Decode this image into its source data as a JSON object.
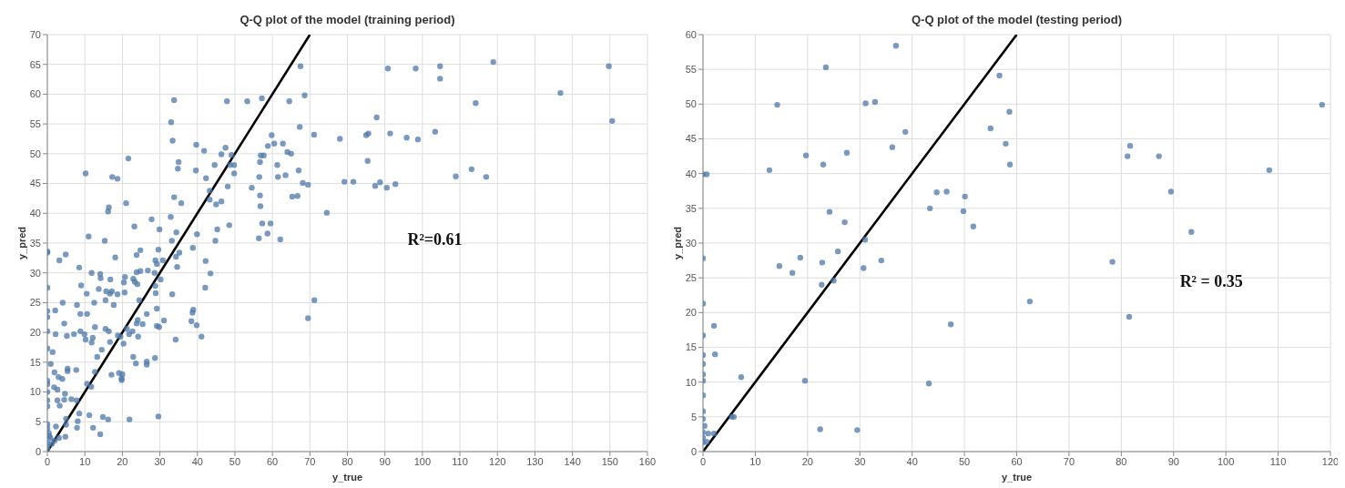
{
  "chart_data": [
    {
      "type": "scatter",
      "title": "Q-Q plot of the model (training period)",
      "xlabel": "y_true",
      "ylabel": "y_pred",
      "annotations": [
        "R²=0.61"
      ],
      "xlim": [
        0,
        160
      ],
      "xticks": [
        0,
        10,
        20,
        30,
        40,
        50,
        60,
        70,
        80,
        90,
        100,
        110,
        120,
        130,
        140,
        150,
        160
      ],
      "ylim": [
        0,
        70
      ],
      "yticks": [
        0,
        5,
        10,
        15,
        20,
        25,
        30,
        35,
        40,
        45,
        50,
        55,
        60,
        65,
        70
      ],
      "grid": true,
      "marker": "circle",
      "series": [
        {
          "color": "#4c78a8",
          "x": [
            33.8,
            47.9,
            53.3,
            57.2,
            64.5,
            68.6,
            67.5,
            33.0,
            33.4,
            67.3,
            71.1,
            59.8,
            39.7,
            41.8,
            47.5,
            46.4,
            49.1,
            58.8,
            60.5,
            62.8,
            64.0,
            65.0,
            56.9,
            57.7,
            56.7,
            61.3,
            48.8,
            49.8,
            49.8,
            44.6,
            35.0,
            34.8,
            39.6,
            42.3,
            56.5,
            61.5,
            63.5,
            67.0,
            68.1,
            69.5,
            48.1,
            54.5,
            43.3,
            43.3,
            45.0,
            46.4,
            56.7,
            56.8,
            65.3,
            66.7,
            74.5,
            33.8,
            35.7,
            10.2,
            17.3,
            18.7,
            21.0,
            16.4,
            16.2,
            21.6,
            27.8,
            32.9,
            23.2,
            29.9,
            45.3,
            39.9,
            48.5,
            57.3,
            59.5,
            58.7,
            56.4,
            62.1,
            44.8,
            34.4,
            33.2,
            11.0,
            15.3,
            38.8,
            24.8,
            23.8,
            29.6,
            35.2,
            34.3,
            34.6,
            0,
            0,
            4.9,
            3.2,
            18.1,
            8.5,
            28.8,
            29.2,
            30.8,
            42.2,
            43.5,
            11.8,
            14.1,
            14.2,
            16.8,
            20.7,
            20.4,
            23.8,
            24.8,
            26.8,
            28.6,
            30.2,
            22.9,
            23.3,
            24.0,
            9.0,
            28.8,
            0,
            13.7,
            15.7,
            17.2,
            16.7,
            18.7,
            20.6,
            10.5,
            28.9,
            33.3,
            42.1,
            24.5,
            15.5,
            4.1,
            12.5,
            7.9,
            17.7,
            71.2,
            69.5,
            0,
            0,
            2.1,
            8.8,
            10.6,
            26.5,
            29.2,
            38.9,
            38.7,
            24.1,
            31.1,
            38.4,
            4.5,
            12.7,
            15.5,
            16.4,
            21.2,
            22.7,
            23.8,
            25.4,
            29.2,
            29.8,
            39.8,
            0,
            2.2,
            5.2,
            7.1,
            8.8,
            9.9,
            10.2,
            11.8,
            12.1,
            16.7,
            18.8,
            19.5,
            20.3,
            21.8,
            24.2,
            34.2,
            41.1,
            0,
            1.4,
            14.5,
            13.3,
            22.9,
            23.6,
            26.5,
            26.5,
            28.7,
            0.9,
            1.9,
            3.0,
            4.0,
            5.4,
            5.4,
            7.7,
            12.7,
            17.1,
            19.1,
            20.0,
            19.8,
            19.8,
            0,
            0,
            0,
            1.8,
            2.7,
            10.6,
            11.7,
            4.7,
            0,
            0,
            2.7,
            3.3,
            4.5,
            6.4,
            7.8,
            8.5,
            8.1,
            7.9,
            11.2,
            12.2,
            14.1,
            14.8,
            16.2,
            21.9,
            29.6,
            4.8,
            5.0,
            5.0,
            2.3,
            3.1,
            0,
            0,
            0.4,
            0.8,
            0,
            1.2,
            0,
            1.9,
            0,
            0.5,
            78,
            79.2,
            90.8,
            98.2,
            104.7,
            104.7,
            118.9,
            149.7,
            136.8,
            114.2,
            87.8,
            85.0,
            85.6,
            91.4,
            95.8,
            98.8,
            103.4,
            150.6,
            85.4,
            81.6,
            87.4,
            88.7,
            90.5,
            92.8,
            108.9,
            113.1,
            117.0
          ],
          "values": [
            59.0,
            58.8,
            58.8,
            59.3,
            58.8,
            59.8,
            64.7,
            55.3,
            52.2,
            54.5,
            53.2,
            53.1,
            51.5,
            50.5,
            51.0,
            49.9,
            49.8,
            51.3,
            51.7,
            51.7,
            50.3,
            50.0,
            49.7,
            49.7,
            48.6,
            48.1,
            48.1,
            48.1,
            46.7,
            48.1,
            48.6,
            47.5,
            47.2,
            45.9,
            46.1,
            46.1,
            46.4,
            47.2,
            45.1,
            44.8,
            44.5,
            44.3,
            43.8,
            42.3,
            41.5,
            42.0,
            43.0,
            41.2,
            42.8,
            42.9,
            40.1,
            42.7,
            41.7,
            46.7,
            46.1,
            45.8,
            41.7,
            41.0,
            40.3,
            49.2,
            39.0,
            39.4,
            37.8,
            37.3,
            37.3,
            36.5,
            38.0,
            38.3,
            38.3,
            36.6,
            35.8,
            35.6,
            35.4,
            36.8,
            35.4,
            36.1,
            35.4,
            34.2,
            33.8,
            33.0,
            33.9,
            33.4,
            32.7,
            31.0,
            33.6,
            33.4,
            33.1,
            32.1,
            32.6,
            30.9,
            32.1,
            31.5,
            32.1,
            32.0,
            29.9,
            30.0,
            29.8,
            29.1,
            28.9,
            29.3,
            28.4,
            30.1,
            30.3,
            30.4,
            30.0,
            28.9,
            29.0,
            28.5,
            28.1,
            27.9,
            27.8,
            27.5,
            27.3,
            26.9,
            26.9,
            26.5,
            26.4,
            26.7,
            26.5,
            26.6,
            26.4,
            27.5,
            25.4,
            25.4,
            25.0,
            25.0,
            24.6,
            24.6,
            25.4,
            22.4,
            23.6,
            22.6,
            23.7,
            23.1,
            23.1,
            23.1,
            24.0,
            23.8,
            23.3,
            22.1,
            22.0,
            21.9,
            21.5,
            20.9,
            20.6,
            20.2,
            20.6,
            20.2,
            21.5,
            21.4,
            21.1,
            20.9,
            21.2,
            20.2,
            19.7,
            19.4,
            19.7,
            20.2,
            19.7,
            18.8,
            18.3,
            19.1,
            18.4,
            19.5,
            19.3,
            18.1,
            19.7,
            19.3,
            18.8,
            19.3,
            17.3,
            16.7,
            17.1,
            15.9,
            15.9,
            14.8,
            15.1,
            14.6,
            15.7,
            14.7,
            13.3,
            12.5,
            12.2,
            13.9,
            13.5,
            13.7,
            13.4,
            12.9,
            13.2,
            13.0,
            12.3,
            12.0,
            11.9,
            11.3,
            10.0,
            10.8,
            10.4,
            11.4,
            10.9,
            9.7,
            8.6,
            7.6,
            8.6,
            7.7,
            8.7,
            8.8,
            8.6,
            6.4,
            5.1,
            4.0,
            6.1,
            4.0,
            2.9,
            5.8,
            5.4,
            5.4,
            5.9,
            2.5,
            5.5,
            4.5,
            4.2,
            2.3,
            4.6,
            3.9,
            3.1,
            2.3,
            1.5,
            1.3,
            0.8,
            1.8,
            0.3,
            2.6,
            52.5,
            45.3,
            64.3,
            64.3,
            64.7,
            62.6,
            65.4,
            64.7,
            60.2,
            58.5,
            56.1,
            53.1,
            53.4,
            53.4,
            52.7,
            52.4,
            53.7,
            55.5,
            48.8,
            45.3,
            44.6,
            45.2,
            44.3,
            44.9,
            46.2,
            47.4,
            46.1
          ]
        },
        {
          "type": "line",
          "color": "#000000",
          "marker": "none",
          "x": [
            0,
            70
          ],
          "values": [
            0,
            70
          ]
        }
      ]
    },
    {
      "type": "scatter",
      "title": "Q-Q plot of the model (testing period)",
      "xlabel": "y_true",
      "ylabel": "y_pred",
      "annotations": [
        "R² = 0.35"
      ],
      "xlim": [
        0,
        120
      ],
      "xticks": [
        0,
        10,
        20,
        30,
        40,
        50,
        60,
        70,
        80,
        90,
        100,
        110,
        120
      ],
      "ylim": [
        0,
        60
      ],
      "yticks": [
        0,
        5,
        10,
        15,
        20,
        25,
        30,
        35,
        40,
        45,
        50,
        55,
        60
      ],
      "grid": true,
      "marker": "circle",
      "series": [
        {
          "color": "#4c78a8",
          "x": [
            36.9,
            23.5,
            14.2,
            31.1,
            32.9,
            38.7,
            36.2,
            19.7,
            27.5,
            23.0,
            12.7,
            0,
            0.7,
            44.7,
            46.6,
            50.1,
            43.4,
            49.8,
            51.7,
            24.2,
            27.1,
            31.0,
            25.8,
            18.6,
            22.8,
            34.1,
            30.7,
            14.6,
            17.1,
            22.7,
            25.0,
            0,
            0,
            2.1,
            47.4,
            0,
            0,
            2.3,
            0,
            0,
            0,
            7.3,
            19.5,
            43.2,
            0,
            0,
            0,
            5.5,
            5.9,
            22.4,
            29.5,
            0.3,
            0,
            1.0,
            2.1,
            0,
            0,
            0.7,
            56.7,
            58.6,
            55.0,
            57.9,
            58.7,
            62.5,
            78.3,
            81.7,
            81.2,
            81.5,
            87.2,
            89.5,
            93.4,
            108.3,
            118.4
          ],
          "values": [
            58.4,
            55.3,
            49.9,
            50.1,
            50.3,
            46.0,
            43.8,
            42.6,
            43.0,
            41.3,
            40.5,
            39.9,
            39.9,
            37.3,
            37.4,
            36.7,
            35.0,
            34.6,
            32.4,
            34.5,
            33.0,
            30.5,
            28.8,
            27.9,
            27.2,
            27.5,
            26.4,
            26.7,
            25.7,
            24.0,
            24.6,
            27.8,
            21.3,
            18.1,
            18.3,
            16.7,
            13.9,
            14.0,
            12.6,
            11.1,
            10.2,
            10.7,
            10.2,
            9.8,
            8.1,
            5.8,
            4.7,
            5.0,
            5.0,
            3.2,
            3.1,
            3.7,
            2.8,
            2.6,
            2.6,
            2.0,
            1.3,
            1.4,
            54.1,
            48.9,
            46.5,
            44.3,
            41.3,
            21.6,
            27.3,
            44.0,
            42.5,
            19.4,
            42.5,
            37.4,
            31.6,
            40.5,
            49.9
          ]
        },
        {
          "type": "line",
          "color": "#000000",
          "marker": "none",
          "x": [
            0,
            60
          ],
          "values": [
            0,
            60
          ]
        }
      ]
    }
  ]
}
